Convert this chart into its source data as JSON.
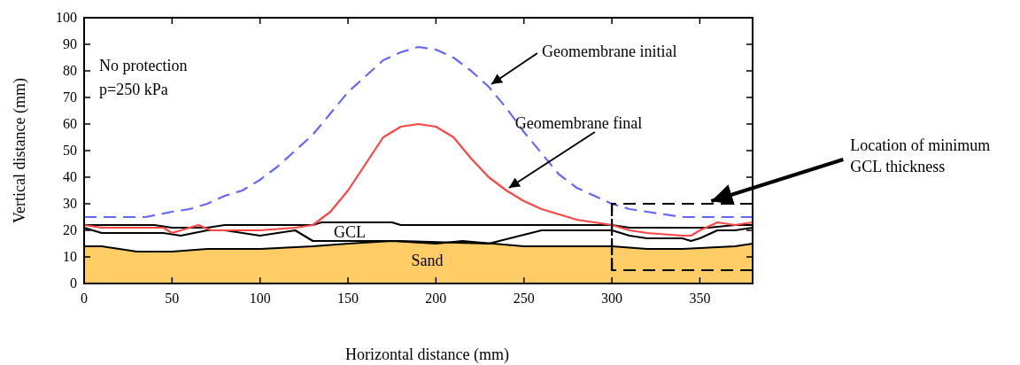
{
  "chart_data": {
    "type": "line",
    "xlabel": "Horizontal distance (mm)",
    "ylabel": "Vertical distance (mm)",
    "xlim": [
      0,
      380
    ],
    "ylim": [
      0,
      100
    ],
    "xticks": [
      0,
      50,
      100,
      150,
      200,
      250,
      300,
      350
    ],
    "yticks": [
      0,
      10,
      20,
      30,
      40,
      50,
      60,
      70,
      80,
      90,
      100
    ],
    "grid": false,
    "series": [
      {
        "type": "area",
        "color": "#ffcc66",
        "x": [
          0,
          10,
          30,
          50,
          70,
          100,
          130,
          150,
          175,
          200,
          215,
          250,
          300,
          320,
          340,
          370,
          380
        ],
        "values": [
          14,
          14,
          12,
          12,
          13,
          13,
          14,
          15,
          16,
          15,
          16,
          14,
          14,
          13,
          13,
          14,
          15
        ]
      },
      {
        "color": "#000000",
        "x": [
          0,
          10,
          45,
          55,
          70,
          80,
          100,
          120,
          130,
          180,
          230,
          260,
          300,
          310,
          320,
          340,
          345,
          350,
          360,
          370,
          380
        ],
        "values": [
          21,
          19,
          19,
          18,
          20,
          20,
          18,
          20,
          16,
          16,
          15,
          20,
          20,
          18,
          17,
          17,
          16,
          17,
          20,
          20,
          21
        ]
      },
      {
        "color": "#000000",
        "x": [
          0,
          10,
          40,
          50,
          70,
          80,
          100,
          130,
          135,
          160,
          175,
          180,
          215,
          250,
          300,
          310,
          320,
          345,
          355,
          370,
          380
        ],
        "values": [
          22,
          22,
          22,
          21,
          21,
          22,
          22,
          22,
          23,
          23,
          23,
          22,
          22,
          22,
          22,
          21,
          21,
          21,
          21,
          22,
          22
        ]
      },
      {
        "color": "#ff4444",
        "x": [
          0,
          10,
          30,
          45,
          50,
          55,
          65,
          72,
          100,
          120,
          130,
          140,
          150,
          160,
          170,
          180,
          190,
          200,
          210,
          220,
          230,
          240,
          250,
          260,
          270,
          280,
          290,
          300,
          310,
          320,
          340,
          345,
          350,
          360,
          370,
          380
        ],
        "values": [
          22,
          21,
          21,
          21,
          19,
          20,
          22,
          20,
          20,
          21,
          22,
          27,
          35,
          45,
          55,
          59,
          60,
          59,
          55,
          47,
          40,
          35,
          31,
          28,
          26,
          24,
          23,
          22,
          20,
          19,
          18,
          18,
          20,
          23,
          22,
          23
        ]
      },
      {
        "color": "#6666ff",
        "line_style": "dashed",
        "x": [
          0,
          20,
          35,
          50,
          60,
          70,
          80,
          90,
          100,
          110,
          120,
          130,
          140,
          150,
          160,
          170,
          180,
          190,
          200,
          210,
          220,
          230,
          240,
          250,
          260,
          270,
          280,
          290,
          300,
          310,
          320,
          330,
          340,
          350,
          380
        ],
        "values": [
          25,
          25,
          25,
          27,
          28,
          30,
          33,
          35,
          39,
          44,
          50,
          56,
          64,
          72,
          78,
          84,
          87,
          89,
          88,
          85,
          80,
          74,
          66,
          57,
          49,
          41,
          36,
          33,
          30,
          28,
          27,
          26,
          25,
          25,
          25
        ]
      },
      {
        "color": "#000000",
        "x": [
          380,
          300,
          300
        ],
        "values": [
          30,
          30,
          5
        ],
        "line_style": "dashed"
      },
      {
        "color": "#000000",
        "x": [
          300,
          300,
          380
        ],
        "values": [
          30,
          5,
          5
        ],
        "line_style": "dashed"
      }
    ],
    "annotations": [
      "No protection",
      "p=250 kPa",
      {
        "text": "Geomembrane initial",
        "x": 230,
        "y": 74
      },
      {
        "text": "Geomembrane final",
        "x": 240,
        "y": 35
      },
      "GCL",
      "Sand",
      {
        "text": "Location of minimum GCL thickness",
        "x": 355,
        "y": 30
      }
    ]
  }
}
